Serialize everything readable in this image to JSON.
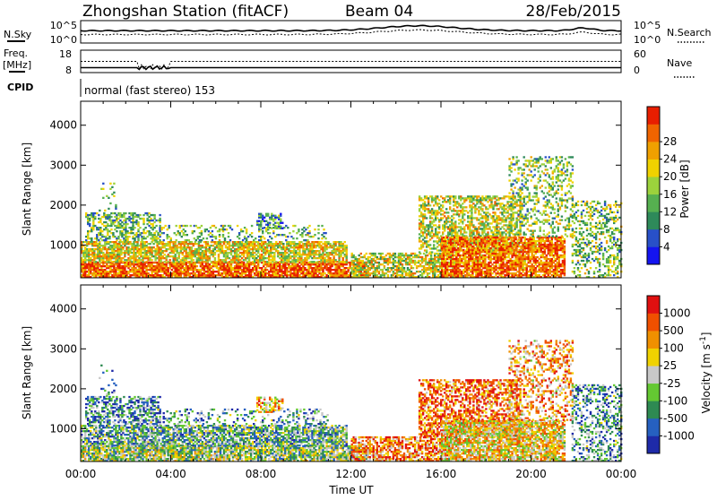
{
  "header": {
    "station": "Zhongshan Station (fitACF)",
    "beam": "Beam 04",
    "date": "28/Feb/2015"
  },
  "strips": {
    "noise": {
      "left_label": "N.Sky",
      "right_label": "N.Search",
      "left_ticks": [
        "10^5",
        "10^0"
      ],
      "right_ticks": [
        "10^5",
        "10^0"
      ]
    },
    "freq": {
      "left_label_1": "Freq.",
      "left_label_2": "[MHz]",
      "left_ticks": [
        "18",
        "8"
      ],
      "right_label": "Nave",
      "right_ticks": [
        "60",
        "0"
      ]
    },
    "cpid": {
      "label": "CPID",
      "text": "normal (fast stereo) 153"
    }
  },
  "chart_data": [
    {
      "type": "heatmap",
      "name": "power",
      "ylabel": "Slant Range [km]",
      "xlabel": "",
      "ylim": [
        180,
        4600
      ],
      "yticks": [
        "1000",
        "2000",
        "3000",
        "4000"
      ],
      "xlim": [
        0,
        24
      ],
      "colorbar": {
        "label": "Power [dB]",
        "ticks": [
          "4",
          "8",
          "12",
          "16",
          "20",
          "24",
          "28"
        ],
        "colors": [
          "#1414f0",
          "#2850c8",
          "#2e8a5a",
          "#56b050",
          "#9cd23c",
          "#f0d200",
          "#f0a000",
          "#f06400",
          "#e81e00"
        ]
      }
    },
    {
      "type": "heatmap",
      "name": "velocity",
      "ylabel": "Slant Range [km]",
      "xlabel": "Time UT",
      "ylim": [
        180,
        4600
      ],
      "yticks": [
        "1000",
        "2000",
        "3000",
        "4000"
      ],
      "xlim": [
        0,
        24
      ],
      "xticks": [
        "00:00",
        "04:00",
        "08:00",
        "12:00",
        "16:00",
        "20:00",
        "00:00"
      ],
      "colorbar": {
        "label": "Velocity [m s",
        "label_sup": "-1",
        "label_end": "]",
        "ticks": [
          "1000",
          "500",
          "100",
          "25",
          "-25",
          "-100",
          "-500",
          "-1000"
        ],
        "colors": [
          "#1e2aa8",
          "#2660c0",
          "#2e8a52",
          "#64c832",
          "#c8c8c8",
          "#f0d200",
          "#f09000",
          "#f05000",
          "#e01010"
        ]
      }
    }
  ]
}
